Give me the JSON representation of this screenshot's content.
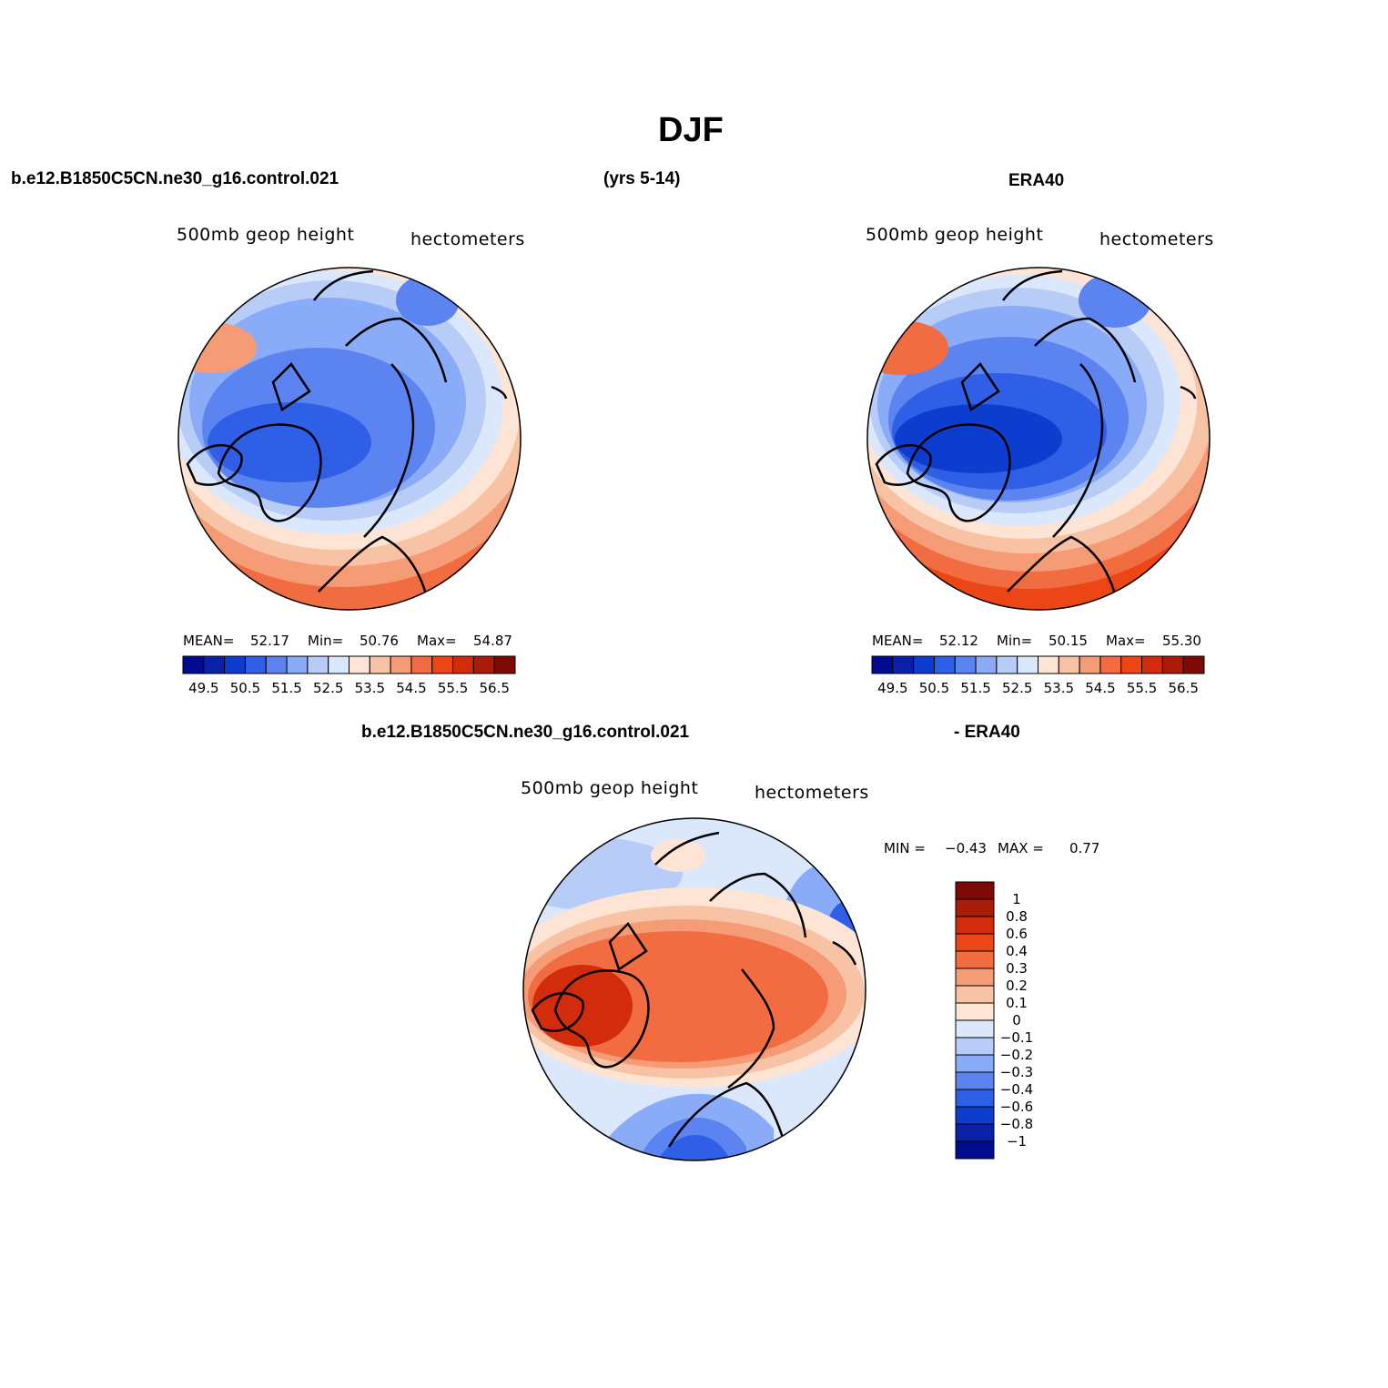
{
  "title": "DJF",
  "header": {
    "case_name": "b.e12.B1850C5CN.ne30_g16.control.021",
    "years": "(yrs 5-14)",
    "reference": "ERA40"
  },
  "diff_header": {
    "case_name": "b.e12.B1850C5CN.ne30_g16.control.021",
    "suffix": "- ERA40"
  },
  "panels": {
    "model": {
      "left_label": "500mb geop height",
      "right_label": "hectometers",
      "mean_label": "MEAN=",
      "mean": "52.17",
      "min_label": "Min=",
      "min": "50.76",
      "max_label": "Max=",
      "max": "54.87"
    },
    "obs": {
      "left_label": "500mb geop height",
      "right_label": "hectometers",
      "mean_label": "MEAN=",
      "mean": "52.12",
      "min_label": "Min=",
      "min": "50.15",
      "max_label": "Max=",
      "max": "55.30"
    },
    "diff": {
      "left_label": "500mb geop height",
      "right_label": "hectometers",
      "min_label": "MIN =",
      "min": "−0.43",
      "max_label": "MAX =",
      "max": "0.77"
    }
  },
  "colors": {
    "abs_scale": [
      "#000c8f",
      "#0a22a8",
      "#0d3dcf",
      "#2f5fe6",
      "#5b84f0",
      "#8aabf7",
      "#b8ccf8",
      "#dbe8fb",
      "#fde4d4",
      "#f8c3a4",
      "#f59b75",
      "#f26c42",
      "#ec4617",
      "#d22c0c",
      "#a91d08",
      "#7d0a05"
    ],
    "diff_scale": [
      "#000c8f",
      "#0a22a8",
      "#0d3dcf",
      "#2f5fe6",
      "#5b84f0",
      "#8aabf7",
      "#b8ccf8",
      "#dbe8fb",
      "#fde4d4",
      "#f8c3a4",
      "#f59b75",
      "#f26c42",
      "#ec4617",
      "#d22c0c",
      "#a91d08",
      "#7d0a05"
    ]
  },
  "chart_data": [
    {
      "type": "heatmap",
      "name": "model-polar-map",
      "title": "b.e12.B1850C5CN.ne30_g16.control.021",
      "variable": "500mb geop height",
      "units": "hectometers",
      "projection": "north-polar-stereographic",
      "colorbar_ticks": [
        "49.5",
        "50.5",
        "51.5",
        "52.5",
        "53.5",
        "54.5",
        "55.5",
        "56.5"
      ],
      "contour_levels": [
        49.5,
        50,
        50.5,
        51,
        51.5,
        52,
        52.5,
        53,
        53.5,
        54,
        54.5,
        55,
        55.5,
        56,
        56.5
      ],
      "stats": {
        "mean": 52.17,
        "min": 50.76,
        "max": 54.87
      }
    },
    {
      "type": "heatmap",
      "name": "obs-polar-map",
      "title": "ERA40",
      "variable": "500mb geop height",
      "units": "hectometers",
      "projection": "north-polar-stereographic",
      "colorbar_ticks": [
        "49.5",
        "50.5",
        "51.5",
        "52.5",
        "53.5",
        "54.5",
        "55.5",
        "56.5"
      ],
      "contour_levels": [
        49.5,
        50,
        50.5,
        51,
        51.5,
        52,
        52.5,
        53,
        53.5,
        54,
        54.5,
        55,
        55.5,
        56,
        56.5
      ],
      "stats": {
        "mean": 52.12,
        "min": 50.15,
        "max": 55.3
      }
    },
    {
      "type": "heatmap",
      "name": "difference-polar-map",
      "title": "b.e12.B1850C5CN.ne30_g16.control.021 - ERA40",
      "variable": "500mb geop height",
      "units": "hectometers",
      "projection": "north-polar-stereographic",
      "colorbar_ticks": [
        "1",
        "0.8",
        "0.6",
        "0.4",
        "0.3",
        "0.2",
        "0.1",
        "0",
        "−0.1",
        "−0.2",
        "−0.3",
        "−0.4",
        "−0.6",
        "−0.8",
        "−1"
      ],
      "stats": {
        "min": -0.43,
        "max": 0.77
      }
    }
  ]
}
